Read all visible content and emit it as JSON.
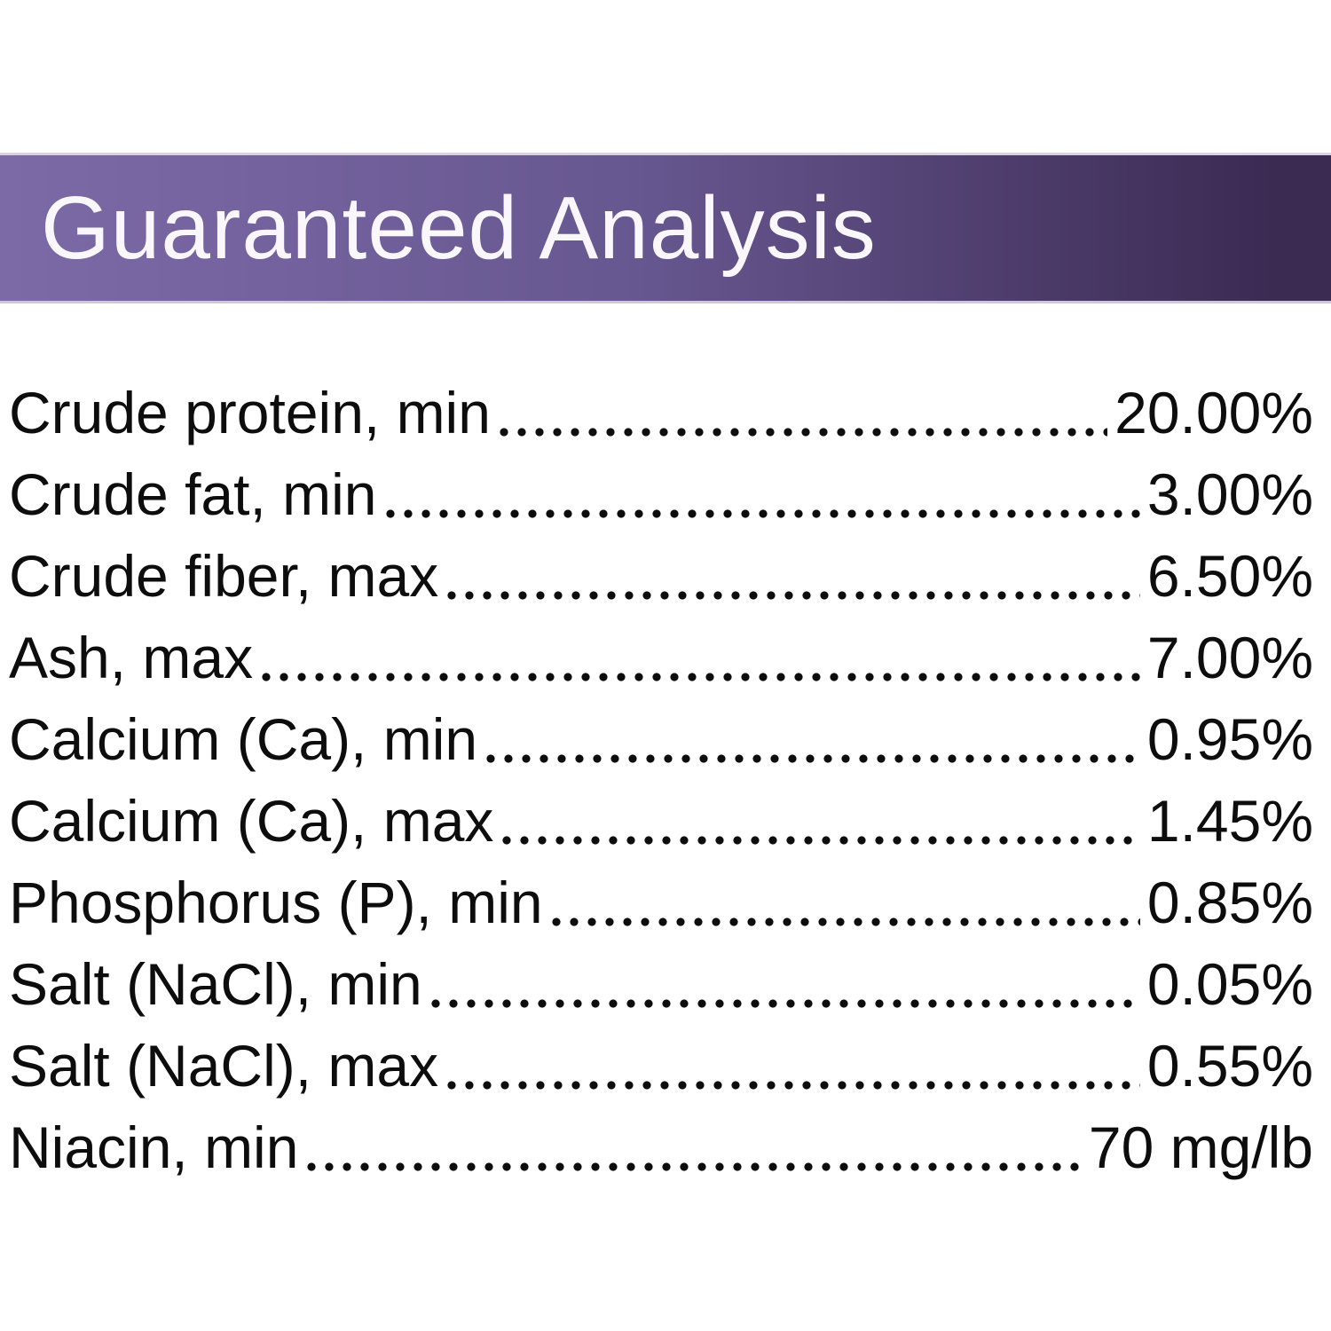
{
  "header": {
    "title": "Guaranteed Analysis"
  },
  "theme": {
    "banner_gradient_left": "#7c6aa7",
    "banner_gradient_mid": "#675790",
    "banner_gradient_right": "#3b2a52",
    "banner_text_color": "#f9f7fc",
    "body_text_color": "#0d0d0d",
    "background_color": "#ffffff"
  },
  "table": {
    "rows": [
      {
        "label": "Crude protein, min",
        "value": "20.00%"
      },
      {
        "label": "Crude fat, min",
        "value": "3.00%"
      },
      {
        "label": "Crude fiber, max",
        "value": "6.50%"
      },
      {
        "label": "Ash, max",
        "value": "7.00%"
      },
      {
        "label": "Calcium (Ca), min",
        "value": "0.95%"
      },
      {
        "label": "Calcium (Ca), max",
        "value": "1.45%"
      },
      {
        "label": "Phosphorus (P), min",
        "value": "0.85%"
      },
      {
        "label": "Salt (NaCl), min",
        "value": "0.05%"
      },
      {
        "label": "Salt (NaCl), max",
        "value": "0.55%"
      },
      {
        "label": "Niacin, min",
        "value": "70 mg/lb"
      }
    ]
  }
}
